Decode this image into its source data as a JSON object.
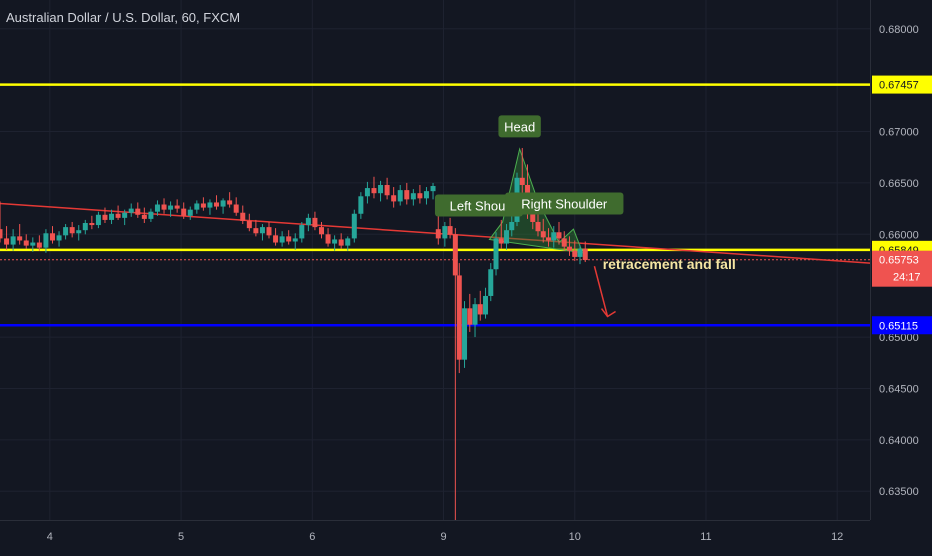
{
  "header": {
    "symbol_title": "Australian Dollar / U.S. Dollar, 60, FXCM"
  },
  "colors": {
    "background": "#131722",
    "grid": "#1e2230",
    "up_candle": "#26a69a",
    "down_candle": "#ef5350",
    "yellow_line": "#ffff00",
    "blue_line": "#0000ff",
    "trendline": "#e53935",
    "pattern_fill": "#2e7d32",
    "label_bg": "#3f6b2e"
  },
  "chart_data": {
    "type": "candlestick",
    "title": "Australian Dollar / U.S. Dollar, 60, FXCM",
    "x_ticks": [
      "4",
      "5",
      "6",
      "9",
      "10",
      "11",
      "12"
    ],
    "x_tick_positions": [
      0.0,
      1.0,
      2.0,
      3.0,
      4.0,
      5.0,
      6.0
    ],
    "y_ticks": [
      "0.68000",
      "0.67000",
      "0.66500",
      "0.66000",
      "0.65000",
      "0.64500",
      "0.64000",
      "0.63500"
    ],
    "y_tick_values": [
      0.68,
      0.67,
      0.665,
      0.66,
      0.65,
      0.645,
      0.64,
      0.635
    ],
    "ylim": [
      0.6322,
      0.6828
    ],
    "xlim": [
      -0.38,
      6.25
    ],
    "grid": true,
    "horizontal_levels": [
      {
        "name": "yellow-upper",
        "value": 0.67457,
        "label": "0.67457",
        "color": "#ffff00"
      },
      {
        "name": "yellow-lower",
        "value": 0.65849,
        "label": "0.65849",
        "color": "#ffff00"
      },
      {
        "name": "blue-support",
        "value": 0.65115,
        "label": "0.65115",
        "color": "#0000ff"
      }
    ],
    "current_price": {
      "value": 0.65753,
      "label": "0.65753",
      "countdown": "24:17"
    },
    "trendline": {
      "x1": -0.38,
      "y1": 0.663,
      "x2": 6.25,
      "y2": 0.6572
    },
    "annotations": [
      {
        "name": "head",
        "text": "Head",
        "x": 3.58,
        "y": 0.6705
      },
      {
        "name": "left-shoulder",
        "text": "Left Shoul",
        "x": 3.27,
        "y": 0.6628
      },
      {
        "name": "right-shoulder",
        "text": "Right Shoulder",
        "x": 3.92,
        "y": 0.663
      },
      {
        "name": "note",
        "text": "retracement and fall",
        "x": 4.72,
        "y": 0.6566
      }
    ],
    "pattern": [
      [
        3.35,
        0.6595
      ],
      [
        3.45,
        0.6612
      ],
      [
        3.58,
        0.6683
      ],
      [
        3.72,
        0.6632
      ],
      [
        3.88,
        0.6592
      ],
      [
        3.99,
        0.6605
      ],
      [
        4.06,
        0.6582
      ]
    ],
    "arrow": [
      [
        4.15,
        0.6569
      ],
      [
        4.25,
        0.652
      ]
    ],
    "candles": [
      [
        -0.38,
        0.6605,
        0.6632,
        0.6592,
        0.6596
      ],
      [
        -0.33,
        0.6596,
        0.6608,
        0.6585,
        0.659
      ],
      [
        -0.28,
        0.659,
        0.6605,
        0.6584,
        0.6598
      ],
      [
        -0.23,
        0.6598,
        0.661,
        0.659,
        0.6594
      ],
      [
        -0.18,
        0.6594,
        0.66,
        0.6586,
        0.6589
      ],
      [
        -0.13,
        0.6589,
        0.6597,
        0.6583,
        0.6592
      ],
      [
        -0.08,
        0.6592,
        0.6599,
        0.6584,
        0.6587
      ],
      [
        -0.03,
        0.6587,
        0.6605,
        0.6582,
        0.6601
      ],
      [
        0.02,
        0.6601,
        0.6608,
        0.6591,
        0.6594
      ],
      [
        0.07,
        0.6594,
        0.6603,
        0.6588,
        0.6599
      ],
      [
        0.12,
        0.6599,
        0.661,
        0.6595,
        0.6607
      ],
      [
        0.17,
        0.6607,
        0.6612,
        0.6597,
        0.6601
      ],
      [
        0.22,
        0.6601,
        0.6609,
        0.6594,
        0.6604
      ],
      [
        0.27,
        0.6604,
        0.6614,
        0.66,
        0.6611
      ],
      [
        0.32,
        0.6611,
        0.6618,
        0.6605,
        0.6609
      ],
      [
        0.37,
        0.6609,
        0.6622,
        0.6606,
        0.6619
      ],
      [
        0.42,
        0.6619,
        0.6626,
        0.6611,
        0.6614
      ],
      [
        0.47,
        0.6614,
        0.6624,
        0.661,
        0.662
      ],
      [
        0.52,
        0.662,
        0.6628,
        0.6614,
        0.6616
      ],
      [
        0.57,
        0.6616,
        0.6624,
        0.6609,
        0.6621
      ],
      [
        0.62,
        0.6621,
        0.663,
        0.6617,
        0.6625
      ],
      [
        0.67,
        0.6625,
        0.6631,
        0.6616,
        0.6619
      ],
      [
        0.72,
        0.6619,
        0.6626,
        0.6611,
        0.6615
      ],
      [
        0.77,
        0.6615,
        0.6625,
        0.6612,
        0.6622
      ],
      [
        0.82,
        0.6622,
        0.6633,
        0.6618,
        0.6629
      ],
      [
        0.87,
        0.6629,
        0.6635,
        0.662,
        0.6624
      ],
      [
        0.92,
        0.6624,
        0.6632,
        0.6617,
        0.6628
      ],
      [
        0.97,
        0.6628,
        0.6634,
        0.6621,
        0.6625
      ],
      [
        1.02,
        0.6625,
        0.6631,
        0.6615,
        0.6618
      ],
      [
        1.07,
        0.6618,
        0.6627,
        0.6614,
        0.6624
      ],
      [
        1.12,
        0.6624,
        0.6633,
        0.662,
        0.663
      ],
      [
        1.17,
        0.663,
        0.6636,
        0.6623,
        0.6626
      ],
      [
        1.22,
        0.6626,
        0.6634,
        0.6619,
        0.6631
      ],
      [
        1.27,
        0.6631,
        0.6638,
        0.6624,
        0.6627
      ],
      [
        1.32,
        0.6627,
        0.6635,
        0.662,
        0.6633
      ],
      [
        1.37,
        0.6633,
        0.6641,
        0.6626,
        0.6629
      ],
      [
        1.42,
        0.6629,
        0.6636,
        0.6618,
        0.6621
      ],
      [
        1.47,
        0.6621,
        0.6628,
        0.661,
        0.6613
      ],
      [
        1.52,
        0.6613,
        0.662,
        0.6603,
        0.6606
      ],
      [
        1.57,
        0.6606,
        0.6614,
        0.6598,
        0.6601
      ],
      [
        1.62,
        0.6601,
        0.661,
        0.6594,
        0.6607
      ],
      [
        1.67,
        0.6607,
        0.6612,
        0.6596,
        0.6599
      ],
      [
        1.72,
        0.6599,
        0.6606,
        0.6589,
        0.6592
      ],
      [
        1.77,
        0.6592,
        0.6603,
        0.6588,
        0.6598
      ],
      [
        1.82,
        0.6598,
        0.6604,
        0.659,
        0.6593
      ],
      [
        1.87,
        0.6593,
        0.6601,
        0.6585,
        0.6596
      ],
      [
        1.92,
        0.6596,
        0.6612,
        0.6592,
        0.6609
      ],
      [
        1.97,
        0.6609,
        0.662,
        0.6603,
        0.6616
      ],
      [
        2.02,
        0.6616,
        0.6622,
        0.6604,
        0.6607
      ],
      [
        2.07,
        0.6607,
        0.6612,
        0.6596,
        0.66
      ],
      [
        2.12,
        0.66,
        0.6606,
        0.6588,
        0.6591
      ],
      [
        2.17,
        0.6591,
        0.6599,
        0.6584,
        0.6595
      ],
      [
        2.22,
        0.6595,
        0.6601,
        0.6586,
        0.6589
      ],
      [
        2.27,
        0.6589,
        0.6598,
        0.6584,
        0.6596
      ],
      [
        2.32,
        0.6596,
        0.6624,
        0.6592,
        0.662
      ],
      [
        2.37,
        0.662,
        0.6641,
        0.6615,
        0.6637
      ],
      [
        2.42,
        0.6637,
        0.6651,
        0.663,
        0.6645
      ],
      [
        2.47,
        0.6645,
        0.6656,
        0.6635,
        0.664
      ],
      [
        2.52,
        0.664,
        0.6652,
        0.6632,
        0.6648
      ],
      [
        2.57,
        0.6648,
        0.6655,
        0.6634,
        0.6638
      ],
      [
        2.62,
        0.6638,
        0.6646,
        0.6626,
        0.6632
      ],
      [
        2.67,
        0.6632,
        0.6648,
        0.6628,
        0.6643
      ],
      [
        2.72,
        0.6643,
        0.665,
        0.6629,
        0.6634
      ],
      [
        2.77,
        0.6634,
        0.6644,
        0.6628,
        0.664
      ],
      [
        2.82,
        0.664,
        0.6648,
        0.663,
        0.6635
      ],
      [
        2.87,
        0.6635,
        0.6646,
        0.6629,
        0.6642
      ],
      [
        2.92,
        0.6642,
        0.665,
        0.6634,
        0.6647
      ],
      [
        2.96,
        0.6605,
        0.6618,
        0.659,
        0.6596
      ],
      [
        3.01,
        0.6596,
        0.6612,
        0.6588,
        0.6608
      ],
      [
        3.05,
        0.6608,
        0.6616,
        0.6596,
        0.66
      ],
      [
        3.09,
        0.66,
        0.6606,
        0.6322,
        0.656
      ],
      [
        3.12,
        0.656,
        0.6572,
        0.6465,
        0.6478
      ],
      [
        3.16,
        0.6478,
        0.6535,
        0.647,
        0.6528
      ],
      [
        3.2,
        0.6528,
        0.6542,
        0.6505,
        0.6512
      ],
      [
        3.24,
        0.6512,
        0.6538,
        0.65,
        0.6532
      ],
      [
        3.28,
        0.6532,
        0.6545,
        0.6516,
        0.6522
      ],
      [
        3.32,
        0.6522,
        0.6548,
        0.6518,
        0.654
      ],
      [
        3.36,
        0.654,
        0.6572,
        0.6535,
        0.6566
      ],
      [
        3.4,
        0.6566,
        0.6602,
        0.656,
        0.6596
      ],
      [
        3.44,
        0.6596,
        0.6614,
        0.6586,
        0.6591
      ],
      [
        3.48,
        0.6591,
        0.661,
        0.6585,
        0.6604
      ],
      [
        3.52,
        0.6604,
        0.6622,
        0.6598,
        0.6612
      ],
      [
        3.56,
        0.6612,
        0.666,
        0.6608,
        0.6655
      ],
      [
        3.6,
        0.6655,
        0.6684,
        0.664,
        0.6648
      ],
      [
        3.64,
        0.6648,
        0.6668,
        0.6615,
        0.6622
      ],
      [
        3.68,
        0.6622,
        0.664,
        0.6605,
        0.6612
      ],
      [
        3.72,
        0.6612,
        0.6625,
        0.6598,
        0.6603
      ],
      [
        3.76,
        0.6603,
        0.6615,
        0.6592,
        0.6597
      ],
      [
        3.8,
        0.6597,
        0.6606,
        0.6588,
        0.6594
      ],
      [
        3.84,
        0.6594,
        0.6608,
        0.6587,
        0.6602
      ],
      [
        3.88,
        0.6602,
        0.6612,
        0.659,
        0.6596
      ],
      [
        3.92,
        0.6596,
        0.6603,
        0.6584,
        0.6588
      ],
      [
        3.96,
        0.6588,
        0.6598,
        0.6579,
        0.6584
      ],
      [
        4.0,
        0.6584,
        0.6594,
        0.6574,
        0.6578
      ],
      [
        4.04,
        0.6578,
        0.659,
        0.6571,
        0.6586
      ],
      [
        4.08,
        0.6586,
        0.6593,
        0.6573,
        0.6575
      ]
    ]
  }
}
